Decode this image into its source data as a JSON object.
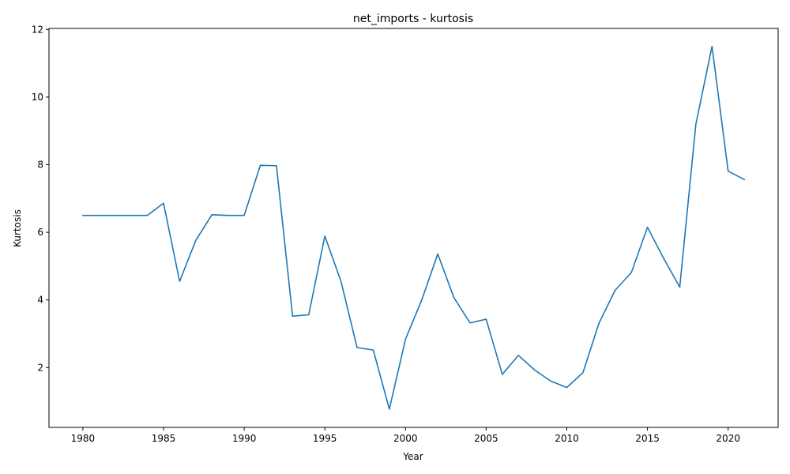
{
  "chart_data": {
    "type": "line",
    "title": "net_imports - kurtosis",
    "xlabel": "Year",
    "ylabel": "Kurtosis",
    "xlim": [
      1977.9,
      2023.1
    ],
    "ylim": [
      0.23,
      12.03
    ],
    "xticks": [
      1980,
      1985,
      1990,
      1995,
      2000,
      2005,
      2010,
      2015,
      2020
    ],
    "yticks": [
      2,
      4,
      6,
      8,
      10,
      12
    ],
    "grid": false,
    "legend": "none",
    "colors": {
      "line": "#1f77b4",
      "axis": "#000000",
      "background": "#ffffff"
    },
    "series": [
      {
        "x": [
          1980,
          1981,
          1982,
          1983,
          1984,
          1985,
          1986,
          1987,
          1988,
          1989,
          1990,
          1991,
          1992,
          1993,
          1994,
          1995,
          1996,
          1997,
          1998,
          1999,
          2000,
          2001,
          2002,
          2003,
          2004,
          2005,
          2006,
          2007,
          2008,
          2009,
          2010,
          2011,
          2012,
          2013,
          2014,
          2015,
          2016,
          2017,
          2018,
          2019,
          2020,
          2021
        ],
        "values": [
          6.5,
          6.5,
          6.5,
          6.5,
          6.5,
          6.86,
          4.55,
          5.76,
          6.52,
          6.5,
          6.5,
          7.98,
          7.97,
          3.52,
          3.56,
          5.89,
          4.55,
          2.59,
          2.52,
          0.77,
          2.84,
          3.99,
          5.36,
          4.07,
          3.32,
          3.43,
          1.8,
          2.36,
          1.93,
          1.6,
          1.41,
          1.85,
          3.32,
          4.29,
          4.81,
          6.15,
          5.23,
          4.38,
          9.2,
          11.5,
          7.81,
          7.56
        ]
      }
    ]
  }
}
